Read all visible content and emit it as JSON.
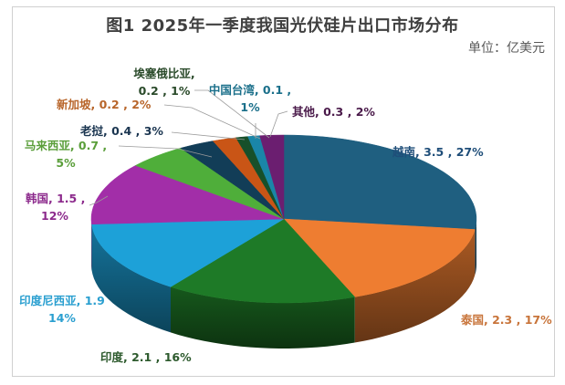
{
  "title": "图1   2025年一季度我国光伏硅片出口市场分布",
  "unit": "单位：亿美元",
  "chart_data": {
    "type": "pie",
    "subtype": "3d-pie",
    "title": "图1 2025年一季度我国光伏硅片出口市场分布",
    "unit": "亿美元",
    "start_angle_deg": 0,
    "direction": "clockwise",
    "slices": [
      {
        "label": "越南",
        "value": 3.5,
        "percent": 27,
        "color": "#1f5f80"
      },
      {
        "label": "泰国",
        "value": 2.3,
        "percent": 17,
        "color": "#ee7d31"
      },
      {
        "label": "印度",
        "value": 2.1,
        "percent": 16,
        "color": "#1e7a27"
      },
      {
        "label": "印度尼西亚",
        "value": 1.9,
        "percent": 14,
        "color": "#1da1d8"
      },
      {
        "label": "韩国",
        "value": 1.5,
        "percent": 12,
        "color": "#a22ea8"
      },
      {
        "label": "马来西亚",
        "value": 0.7,
        "percent": 5,
        "color": "#4fae3a"
      },
      {
        "label": "老挝",
        "value": 0.4,
        "percent": 3,
        "color": "#123d57"
      },
      {
        "label": "新加坡",
        "value": 0.2,
        "percent": 2,
        "color": "#c95516"
      },
      {
        "label": "埃塞俄比亚",
        "value": 0.2,
        "percent": 1,
        "color": "#17502a"
      },
      {
        "label": "中国台湾",
        "value": 0.1,
        "percent": 1,
        "color": "#1a86a8"
      },
      {
        "label": "其他",
        "value": 0.3,
        "percent": 2,
        "color": "#6b1e70"
      }
    ]
  },
  "labels": {
    "vietnam": {
      "line1": "越南, 3.5 , 27%"
    },
    "thailand": {
      "line1": "泰国, 2.3 , 17%"
    },
    "india": {
      "line1": "印度, 2.1 , 16%"
    },
    "indonesia": {
      "line1": "印度尼西亚, 1.9",
      "line2": "14%"
    },
    "korea": {
      "line1": "韩国, 1.5 ,",
      "line2": "12%"
    },
    "malaysia": {
      "line1": "马来西亚, 0.7 ,",
      "line2": "5%"
    },
    "laos": {
      "line1": "老挝, 0.4 , 3%"
    },
    "singapore": {
      "line1": "新加坡, 0.2 , 2%"
    },
    "ethiopia": {
      "line1": "埃塞俄比亚,",
      "line2": "0.2 , 1%"
    },
    "taiwan": {
      "line1": "中国台湾, 0.1 ,",
      "line2": "1%"
    },
    "others": {
      "line1": "其他, 0.3 , 2%"
    }
  },
  "label_colors": {
    "vietnam": "#1f4e79",
    "thailand": "#c8743a",
    "india": "#2d5a2d",
    "indonesia": "#2a9fd0",
    "korea": "#8c2a8c",
    "malaysia": "#5a9e3a",
    "laos": "#1a3550",
    "singapore": "#b8652a",
    "ethiopia": "#2a4a2a",
    "taiwan": "#1a6f8a",
    "others": "#4a1a4a"
  }
}
